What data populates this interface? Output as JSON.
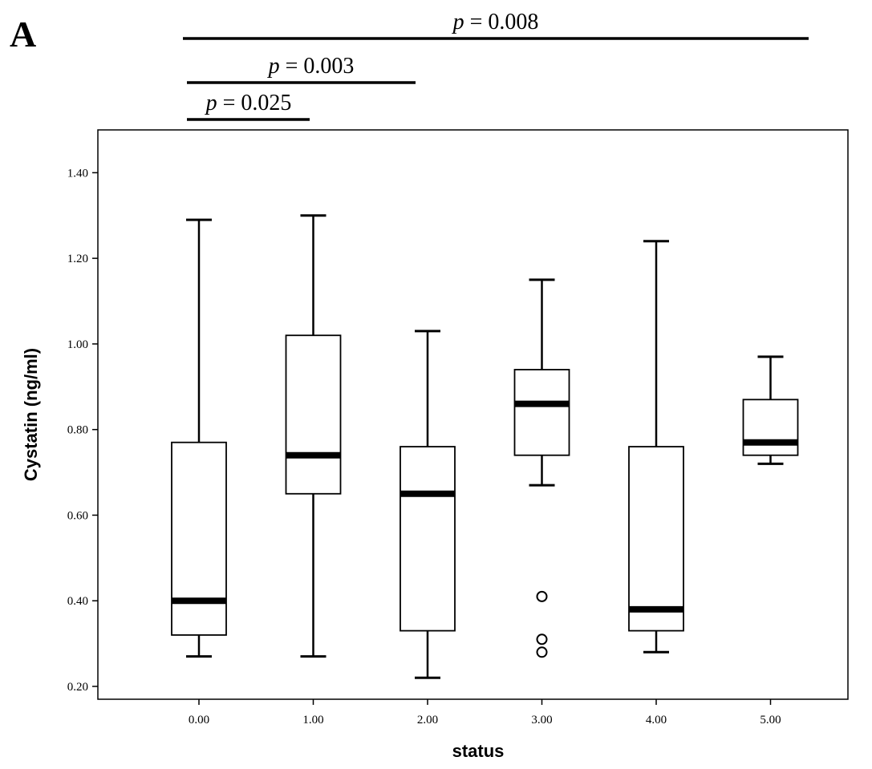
{
  "panel_label": "A",
  "chart_data": {
    "type": "boxplot",
    "xlabel": "status",
    "ylabel": "Cystatin  (ng/ml)",
    "ylim": [
      0.17,
      1.5
    ],
    "yticks": [
      0.2,
      0.4,
      0.6,
      0.8,
      1.0,
      1.2,
      1.4
    ],
    "ytick_labels": [
      "0.20",
      "0.40",
      "0.60",
      "0.80",
      "1.00",
      "1.20",
      "1.40"
    ],
    "categories": [
      "0.00",
      "1.00",
      "2.00",
      "3.00",
      "4.00",
      "5.00"
    ],
    "boxes": [
      {
        "category": "0.00",
        "whisker_low": 0.27,
        "q1": 0.32,
        "median": 0.4,
        "q3": 0.77,
        "whisker_high": 1.29,
        "outliers": []
      },
      {
        "category": "1.00",
        "whisker_low": 0.27,
        "q1": 0.65,
        "median": 0.74,
        "q3": 1.02,
        "whisker_high": 1.3,
        "outliers": []
      },
      {
        "category": "2.00",
        "whisker_low": 0.22,
        "q1": 0.33,
        "median": 0.65,
        "q3": 0.76,
        "whisker_high": 1.03,
        "outliers": []
      },
      {
        "category": "3.00",
        "whisker_low": 0.67,
        "q1": 0.74,
        "median": 0.86,
        "q3": 0.94,
        "whisker_high": 1.15,
        "outliers": [
          0.41,
          0.31,
          0.28
        ]
      },
      {
        "category": "4.00",
        "whisker_low": 0.28,
        "q1": 0.33,
        "median": 0.38,
        "q3": 0.76,
        "whisker_high": 1.24,
        "outliers": []
      },
      {
        "category": "5.00",
        "whisker_low": 0.72,
        "q1": 0.74,
        "median": 0.77,
        "q3": 0.87,
        "whisker_high": 0.97,
        "outliers": []
      }
    ],
    "comparisons": [
      {
        "from": "0.00",
        "to": "5.00",
        "p_symbol": "p",
        "p_value": "= 0.008"
      },
      {
        "from": "0.00",
        "to": "2.00",
        "p_symbol": "p",
        "p_value": "= 0.003"
      },
      {
        "from": "0.00",
        "to": "1.00",
        "p_symbol": "p",
        "p_value": "= 0.025"
      }
    ]
  }
}
